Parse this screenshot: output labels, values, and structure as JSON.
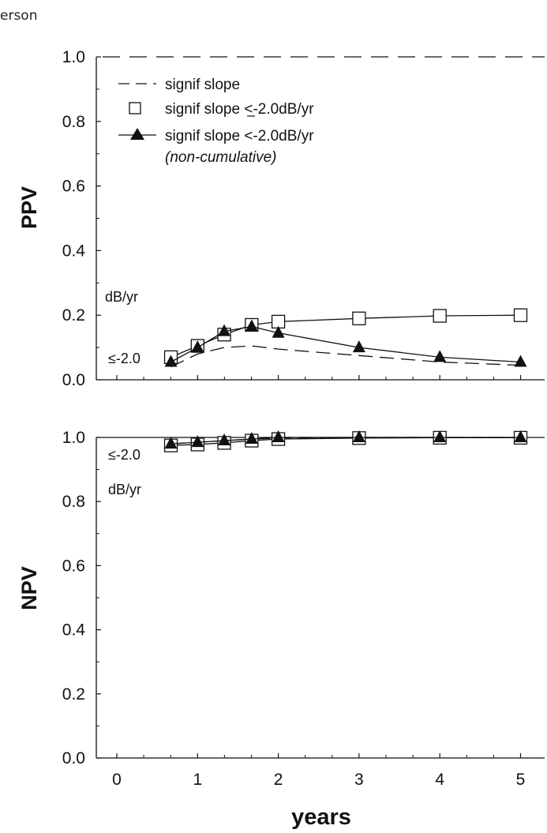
{
  "corner_text": "erson",
  "chart_data": [
    {
      "type": "line",
      "panel": "top",
      "ylabel": "PPV",
      "xlabel": "",
      "xlim": [
        -0.25,
        5.35
      ],
      "ylim": [
        0.0,
        1.0
      ],
      "x_ticks": [
        0,
        1,
        2,
        3,
        4,
        5
      ],
      "y_ticks": [
        0.0,
        0.2,
        0.4,
        0.6,
        0.8,
        1.0
      ],
      "y_tick_labels": [
        "0.0",
        "0.2",
        "0.4",
        "0.6",
        "0.8",
        "1.0"
      ],
      "grid": false,
      "legend_placement": "top-left",
      "legend": [
        {
          "label": "signif slope",
          "style": "dashed"
        },
        {
          "label_prefix": "signif slope ",
          "label_core": "<-2.0dB/yr",
          "underline_lt": true,
          "style": "open-square"
        },
        {
          "label": "signif slope <-2.0dB/yr",
          "sublabel": "(non-cumulative)",
          "style": "filled-triangle"
        }
      ],
      "annotations": [
        "dB/yr",
        "≤-2.0"
      ],
      "series": [
        {
          "key": "signif_slope",
          "style": "dashed",
          "x": [
            0.67,
            1.0,
            1.33,
            1.67,
            2.0,
            3.0,
            4.0,
            5.0
          ],
          "values": [
            0.04,
            0.08,
            0.1,
            0.105,
            0.095,
            0.075,
            0.055,
            0.045
          ]
        },
        {
          "key": "signif_slope_le_2",
          "style": "open-square",
          "x": [
            0.67,
            1.0,
            1.33,
            1.67,
            2.0,
            3.0,
            4.0,
            5.0
          ],
          "values": [
            0.07,
            0.105,
            0.14,
            0.17,
            0.18,
            0.19,
            0.198,
            0.2
          ]
        },
        {
          "key": "signif_slope_le_2_noncum",
          "style": "filled-triangle",
          "x": [
            0.67,
            1.0,
            1.33,
            1.67,
            2.0,
            3.0,
            4.0,
            5.0
          ],
          "values": [
            0.055,
            0.1,
            0.15,
            0.165,
            0.145,
            0.1,
            0.07,
            0.055
          ]
        }
      ]
    },
    {
      "type": "line",
      "panel": "bottom",
      "ylabel": "NPV",
      "xlabel": "years",
      "xlim": [
        -0.25,
        5.35
      ],
      "ylim": [
        0.0,
        1.0
      ],
      "x_ticks": [
        0,
        1,
        2,
        3,
        4,
        5
      ],
      "x_tick_labels": [
        "0",
        "1",
        "2",
        "3",
        "4",
        "5"
      ],
      "y_ticks": [
        0.0,
        0.2,
        0.4,
        0.6,
        0.8,
        1.0
      ],
      "y_tick_labels": [
        "0.0",
        "0.2",
        "0.4",
        "0.6",
        "0.8",
        "1.0"
      ],
      "grid": false,
      "annotations": [
        "≤-2.0",
        "dB/yr"
      ],
      "series": [
        {
          "key": "signif_slope",
          "style": "dashed",
          "x": [
            0.67,
            1.0,
            1.33,
            1.67,
            2.0,
            3.0,
            4.0,
            5.0
          ],
          "values": [
            0.98,
            0.985,
            0.99,
            0.995,
            0.998,
            1.0,
            1.0,
            1.0
          ]
        },
        {
          "key": "signif_slope_le_2",
          "style": "open-square",
          "x": [
            0.67,
            1.0,
            1.33,
            1.67,
            2.0,
            3.0,
            4.0,
            5.0
          ],
          "values": [
            0.975,
            0.978,
            0.983,
            0.99,
            0.995,
            0.998,
            0.999,
            0.999
          ]
        },
        {
          "key": "signif_slope_le_2_noncum",
          "style": "filled-triangle",
          "x": [
            0.67,
            1.0,
            1.33,
            1.67,
            2.0,
            3.0,
            4.0,
            5.0
          ],
          "values": [
            0.98,
            0.985,
            0.99,
            0.995,
            1.0,
            1.0,
            1.0,
            1.0
          ]
        }
      ]
    }
  ]
}
